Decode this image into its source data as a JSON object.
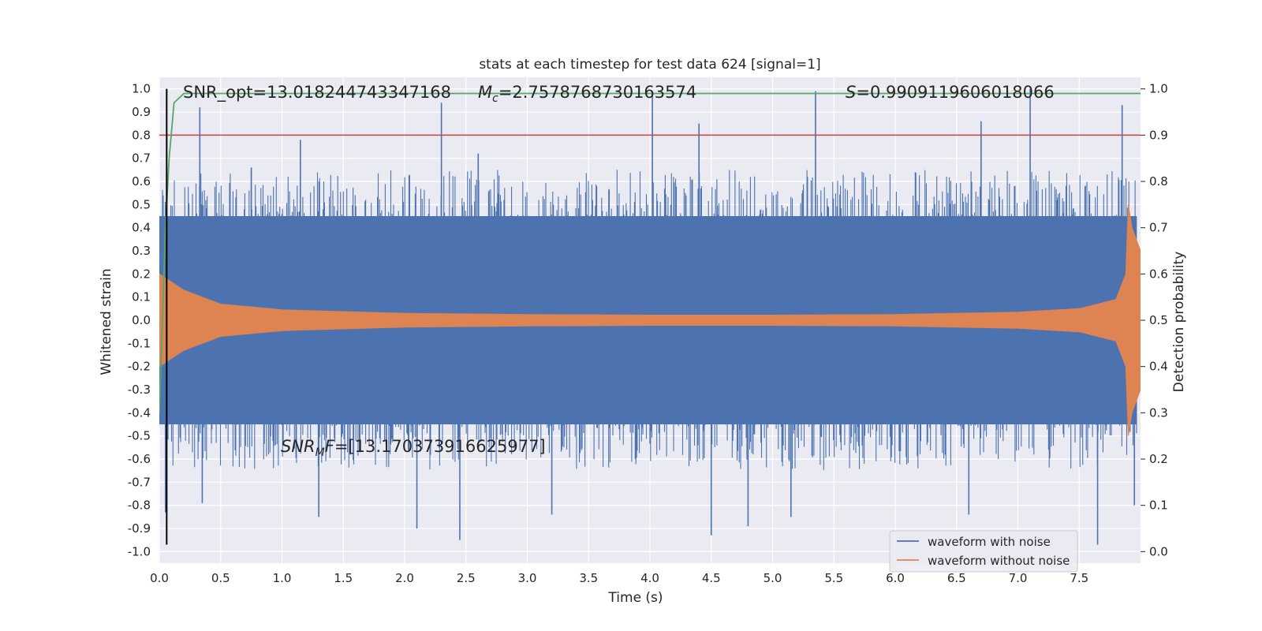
{
  "chart_data": {
    "type": "line",
    "title": "stats at each timestep for test data 624 [signal=1]",
    "xlabel": "Time (s)",
    "ylabel": "Whitened strain",
    "y2label": "Detection probability",
    "xlim": [
      0.0,
      8.0
    ],
    "ylim": [
      -1.05,
      1.05
    ],
    "y2lim": [
      -0.025,
      1.025
    ],
    "xticks": [
      "0.0",
      "0.5",
      "1.0",
      "1.5",
      "2.0",
      "2.5",
      "3.0",
      "3.5",
      "4.0",
      "4.5",
      "5.0",
      "5.5",
      "6.0",
      "6.5",
      "7.0",
      "7.5"
    ],
    "xtick_values": [
      0.0,
      0.5,
      1.0,
      1.5,
      2.0,
      2.5,
      3.0,
      3.5,
      4.0,
      4.5,
      5.0,
      5.5,
      6.0,
      6.5,
      7.0,
      7.5
    ],
    "yticks": [
      "1.0",
      "0.9",
      "0.8",
      "0.7",
      "0.6",
      "0.5",
      "0.4",
      "0.3",
      "0.2",
      "0.1",
      "0.0",
      "-0.1",
      "-0.2",
      "-0.3",
      "-0.4",
      "-0.5",
      "-0.6",
      "-0.7",
      "-0.8",
      "-0.9",
      "-1.0"
    ],
    "ytick_values": [
      1.0,
      0.9,
      0.8,
      0.7,
      0.6,
      0.5,
      0.4,
      0.3,
      0.2,
      0.1,
      0.0,
      -0.1,
      -0.2,
      -0.3,
      -0.4,
      -0.5,
      -0.6,
      -0.7,
      -0.8,
      -0.9,
      -1.0
    ],
    "y2ticks": [
      "1.0",
      "0.9",
      "0.8",
      "0.7",
      "0.6",
      "0.5",
      "0.4",
      "0.3",
      "0.2",
      "0.1",
      "0.0"
    ],
    "y2tick_values": [
      1.0,
      0.9,
      0.8,
      0.7,
      0.6,
      0.5,
      0.4,
      0.3,
      0.2,
      0.1,
      0.0
    ],
    "grid": true,
    "legend_position": "bottom-right",
    "series": [
      {
        "name": "waveform with noise",
        "color": "#4c72b0",
        "axis": "left",
        "description_values": "dense noise band",
        "spikes_top": [
          [
            0.03,
            0.54
          ],
          [
            0.33,
            0.92
          ],
          [
            0.75,
            0.66
          ],
          [
            1.15,
            0.78
          ],
          [
            2.3,
            0.94
          ],
          [
            2.6,
            0.72
          ],
          [
            4.02,
            0.99
          ],
          [
            4.4,
            0.85
          ],
          [
            5.35,
            0.99
          ],
          [
            6.7,
            0.86
          ],
          [
            7.1,
            1.0
          ],
          [
            7.85,
            0.93
          ]
        ],
        "spikes_bottom": [
          [
            0.05,
            -0.83
          ],
          [
            0.35,
            -0.79
          ],
          [
            1.3,
            -0.85
          ],
          [
            2.1,
            -0.9
          ],
          [
            2.45,
            -0.95
          ],
          [
            3.2,
            -0.84
          ],
          [
            4.5,
            -0.93
          ],
          [
            4.8,
            -0.89
          ],
          [
            5.15,
            -0.85
          ],
          [
            6.6,
            -0.84
          ],
          [
            7.65,
            -0.97
          ],
          [
            7.95,
            -0.8
          ]
        ],
        "band_range": [
          -0.45,
          0.45
        ]
      },
      {
        "name": "waveform without noise",
        "color": "#dd8452",
        "axis": "left",
        "envelope": [
          [
            0.0,
            0.2
          ],
          [
            0.2,
            0.13
          ],
          [
            0.5,
            0.07
          ],
          [
            1.0,
            0.045
          ],
          [
            2.0,
            0.03
          ],
          [
            3.0,
            0.025
          ],
          [
            4.0,
            0.022
          ],
          [
            5.0,
            0.022
          ],
          [
            6.0,
            0.025
          ],
          [
            7.0,
            0.035
          ],
          [
            7.5,
            0.05
          ],
          [
            7.8,
            0.09
          ],
          [
            7.88,
            0.2
          ],
          [
            7.9,
            0.5
          ],
          [
            7.93,
            0.4
          ],
          [
            8.0,
            0.3
          ]
        ]
      },
      {
        "name": "",
        "color": "#55a868",
        "axis": "right",
        "x": [
          0.0,
          0.05,
          0.08,
          0.12,
          0.2,
          0.3,
          1.0,
          3.0,
          5.0,
          7.0,
          8.0
        ],
        "y": [
          0.3,
          0.7,
          0.85,
          0.97,
          0.99,
          0.99,
          0.99,
          0.99,
          0.99,
          0.99,
          0.99
        ]
      },
      {
        "name": "",
        "color": "#c44e52",
        "axis": "right",
        "x": [
          0.0,
          8.0
        ],
        "y": [
          0.9,
          0.9
        ]
      }
    ],
    "vline": {
      "x": 0.06,
      "y_from": -0.97,
      "y_to": 1.0,
      "color": "#000000"
    },
    "annotations": {
      "snr_opt": "SNR_opt=13.018244743347168",
      "mc_sym": "M",
      "mc_sub": "c",
      "mc_val": "=2.7578768730163574",
      "s_sym": "S",
      "s_val": "=0.9909119606018066",
      "snrmf_sym": "SNR",
      "snrmf_sub": "M",
      "snrmf_sym2": "F",
      "snrmf_val": "=[13.170373916625977]"
    }
  }
}
